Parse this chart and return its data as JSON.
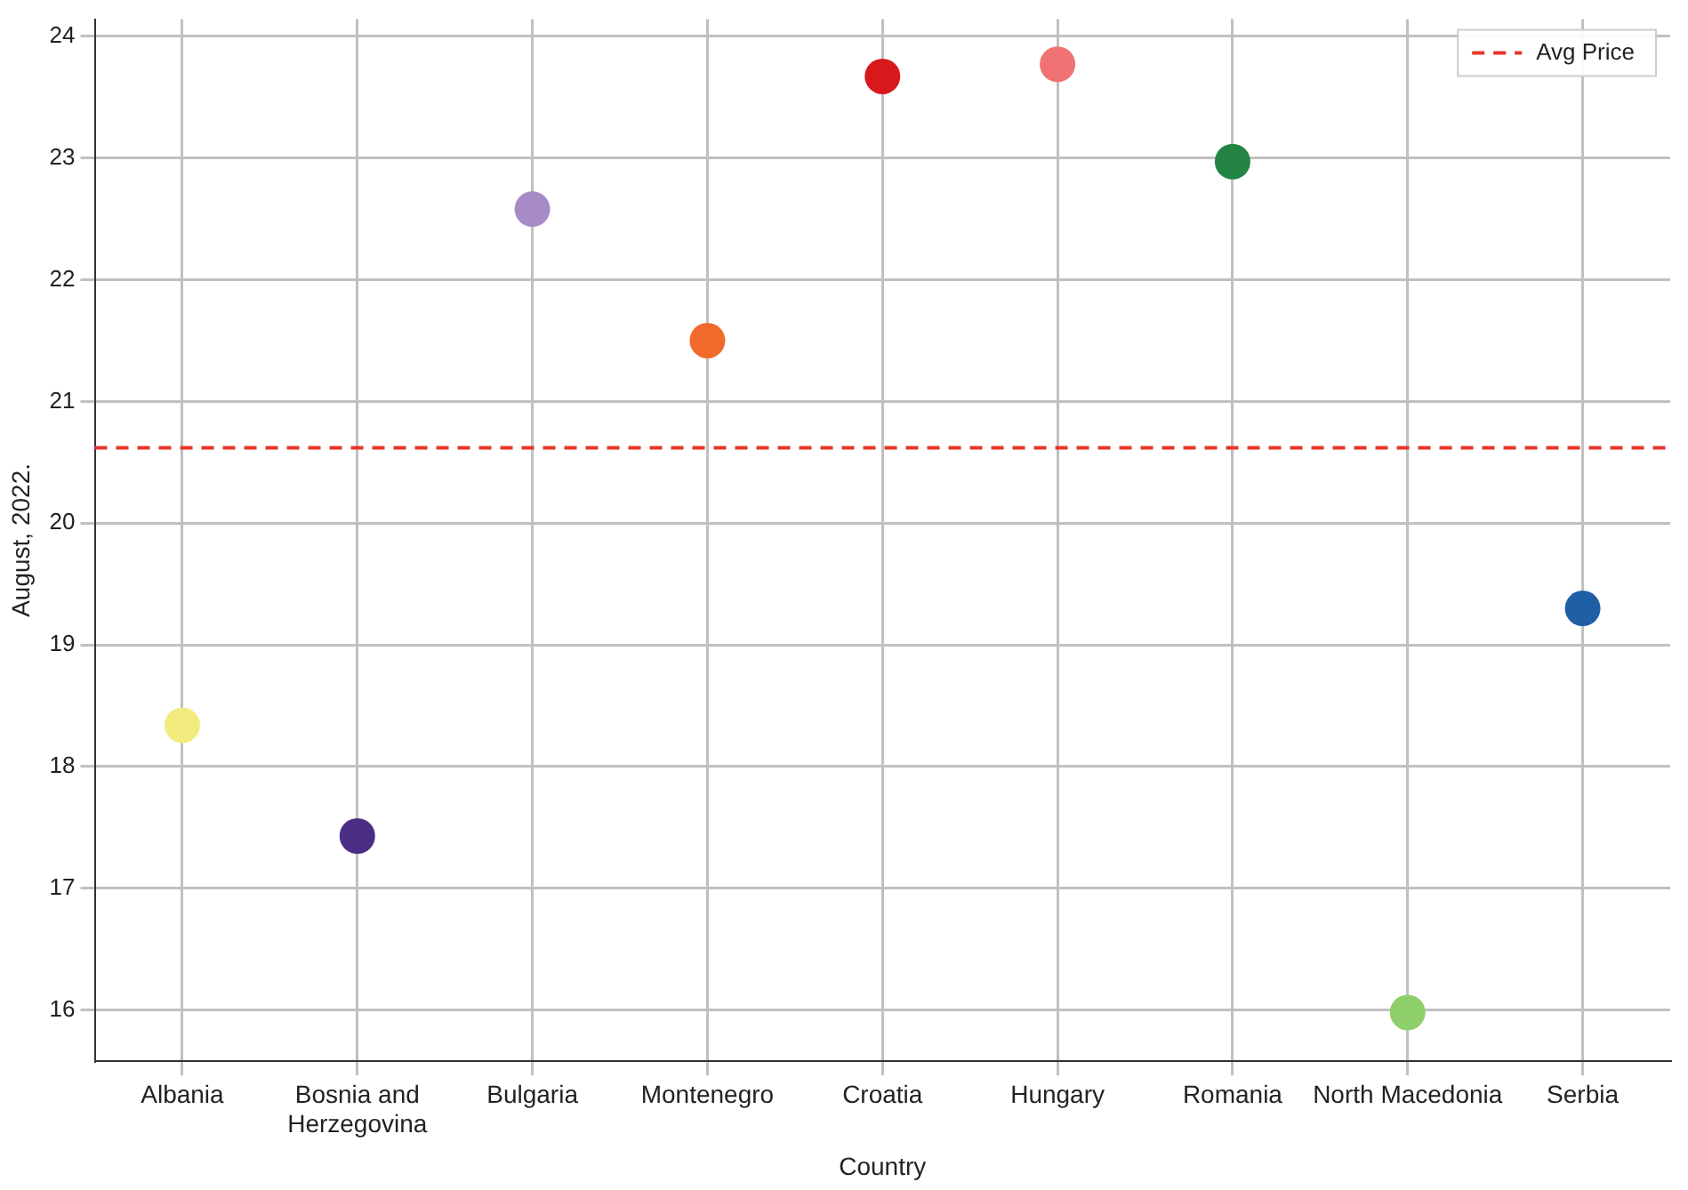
{
  "chart_data": {
    "type": "scatter",
    "xlabel": "Country",
    "ylabel": "August, 2022.",
    "categories": [
      "Albania",
      "Bosnia and Herzegovina",
      "Bulgaria",
      "Montenegro",
      "Croatia",
      "Hungary",
      "Romania",
      "North Macedonia",
      "Serbia"
    ],
    "values": [
      18.34,
      17.43,
      22.58,
      21.5,
      23.67,
      23.77,
      22.97,
      15.98,
      19.3
    ],
    "colors": [
      "#f2ec7e",
      "#4b2e83",
      "#a78bc6",
      "#f06a2c",
      "#d7191c",
      "#f07272",
      "#238443",
      "#8fcf6b",
      "#1f5fa6"
    ],
    "ylim": [
      15.58,
      24.14
    ],
    "yticks": [
      16,
      17,
      18,
      19,
      20,
      21,
      22,
      23,
      24
    ],
    "grid": true,
    "marker": "circle",
    "legend": "top right",
    "ref_lines": [
      {
        "axis": "y",
        "value": 20.62,
        "label": "Avg Price",
        "color": "#e8352a",
        "line_style": "dashed"
      }
    ]
  }
}
